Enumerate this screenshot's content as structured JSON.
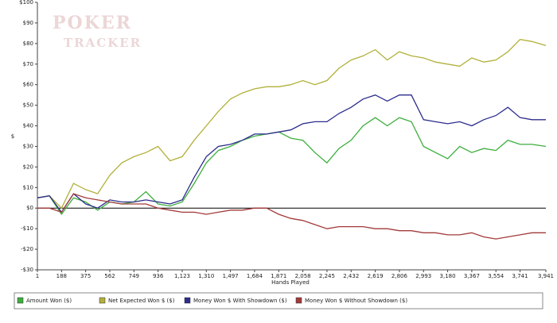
{
  "chart_data": {
    "type": "line",
    "logo": [
      "POKER",
      "TRACKER"
    ],
    "x_label": "Hands Played",
    "y_label": "$",
    "x": [
      1,
      94,
      188,
      281,
      375,
      468,
      562,
      655,
      749,
      842,
      936,
      1029,
      1123,
      1216,
      1310,
      1403,
      1497,
      1590,
      1684,
      1777,
      1871,
      1964,
      2058,
      2151,
      2245,
      2338,
      2432,
      2525,
      2619,
      2712,
      2806,
      2899,
      2993,
      3086,
      3180,
      3273,
      3367,
      3460,
      3554,
      3647,
      3741,
      3834,
      3941
    ],
    "series": [
      {
        "name": "Amount Won ($)",
        "color": "#3cae3c",
        "values": [
          5,
          6,
          -3,
          5,
          3,
          -1,
          3,
          2,
          3,
          8,
          2,
          1,
          3,
          12,
          22,
          28,
          30,
          33,
          35,
          36,
          37,
          34,
          33,
          27,
          22,
          29,
          33,
          40,
          44,
          40,
          44,
          42,
          30,
          27,
          24,
          30,
          27,
          29,
          28,
          33,
          31,
          31,
          30
        ]
      },
      {
        "name": "Net Expected Won $ ($)",
        "color": "#b2b03a",
        "values": [
          5,
          6,
          0,
          12,
          9,
          7,
          16,
          22,
          25,
          27,
          30,
          23,
          25,
          33,
          40,
          47,
          53,
          56,
          58,
          59,
          59,
          60,
          62,
          60,
          62,
          68,
          72,
          74,
          77,
          72,
          76,
          74,
          73,
          71,
          70,
          69,
          73,
          71,
          72,
          76,
          82,
          81,
          79
        ]
      },
      {
        "name": "Money Won $ With Showdown ($)",
        "color": "#2c2c8c",
        "values": [
          5,
          6,
          -2,
          7,
          2,
          0,
          4,
          3,
          3,
          4,
          3,
          2,
          4,
          15,
          25,
          30,
          31,
          33,
          36,
          36,
          37,
          38,
          41,
          42,
          42,
          46,
          49,
          53,
          55,
          52,
          55,
          55,
          43,
          42,
          41,
          42,
          40,
          43,
          45,
          49,
          44,
          43,
          43
        ]
      },
      {
        "name": "Money Won $ Without Showdown ($)",
        "color": "#a23a3a",
        "values": [
          0,
          0,
          -2,
          7,
          5,
          4,
          3,
          2,
          2,
          2,
          0,
          -1,
          -2,
          -2,
          -3,
          -2,
          -1,
          -1,
          0,
          0,
          -3,
          -5,
          -6,
          -8,
          -10,
          -9,
          -9,
          -9,
          -10,
          -10,
          -11,
          -11,
          -12,
          -12,
          -13,
          -13,
          -12,
          -14,
          -15,
          -14,
          -13,
          -12,
          -12
        ]
      }
    ],
    "xlim": [
      1,
      3941
    ],
    "xticks": [
      1,
      188,
      375,
      562,
      749,
      936,
      {
        "value": 1123,
        "label": "1,123"
      },
      {
        "value": 1310,
        "label": "1,310"
      },
      {
        "value": 1497,
        "label": "1,497"
      },
      {
        "value": 1684,
        "label": "1,684"
      },
      {
        "value": 1871,
        "label": "1,871"
      },
      {
        "value": 2058,
        "label": "2,058"
      },
      {
        "value": 2245,
        "label": "2,245"
      },
      {
        "value": 2432,
        "label": "2,432"
      },
      {
        "value": 2619,
        "label": "2,619"
      },
      {
        "value": 2806,
        "label": "2,806"
      },
      {
        "value": 2993,
        "label": "2,993"
      },
      {
        "value": 3180,
        "label": "3,180"
      },
      {
        "value": 3367,
        "label": "3,367"
      },
      {
        "value": 3554,
        "label": "3,554"
      },
      {
        "value": 3741,
        "label": "3,741"
      },
      {
        "value": 3941,
        "label": "3,941"
      }
    ],
    "ylim": [
      -30,
      100
    ],
    "yticks": [
      {
        "value": -30,
        "label": "-$30"
      },
      {
        "value": -20,
        "label": "-$20"
      },
      {
        "value": -10,
        "label": "-$10"
      },
      {
        "value": 0,
        "label": "$0"
      },
      {
        "value": 10,
        "label": "$10"
      },
      {
        "value": 20,
        "label": "$20"
      },
      {
        "value": 30,
        "label": "$30"
      },
      {
        "value": 40,
        "label": "$40"
      },
      {
        "value": 50,
        "label": "$50"
      },
      {
        "value": 60,
        "label": "$60"
      },
      {
        "value": 70,
        "label": "$70"
      },
      {
        "value": 80,
        "label": "$80"
      },
      {
        "value": 90,
        "label": "$90"
      },
      {
        "value": 100,
        "label": "$100"
      }
    ],
    "zero_line": true
  }
}
